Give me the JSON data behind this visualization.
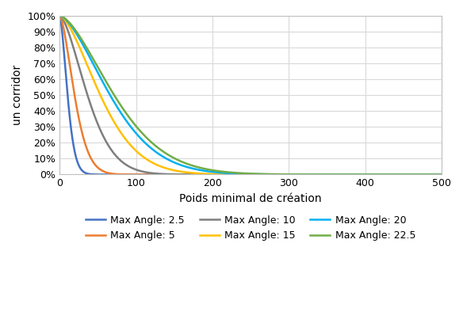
{
  "title": "",
  "xlabel": "Poids minimal de création",
  "ylabel": "un corridor",
  "xlim": [
    0,
    500
  ],
  "ylim": [
    0,
    1.0
  ],
  "yticks": [
    0.0,
    0.1,
    0.2,
    0.3,
    0.4,
    0.5,
    0.6,
    0.7,
    0.8,
    0.9,
    1.0
  ],
  "xticks": [
    0,
    100,
    200,
    300,
    400,
    500
  ],
  "series": [
    {
      "label": "Max Angle: 2.5",
      "color": "#4472C4",
      "k": 0.0165,
      "p": 1.6
    },
    {
      "label": "Max Angle: 5",
      "color": "#ED7D31",
      "k": 0.006,
      "p": 1.6
    },
    {
      "label": "Max Angle: 10",
      "color": "#7F7F7F",
      "k": 0.0022,
      "p": 1.6
    },
    {
      "label": "Max Angle: 15",
      "color": "#FFC000",
      "k": 0.0012,
      "p": 1.6
    },
    {
      "label": "Max Angle: 20",
      "color": "#00B0F0",
      "k": 0.00085,
      "p": 1.6
    },
    {
      "label": "Max Angle: 22.5",
      "color": "#70AD47",
      "k": 0.00075,
      "p": 1.6
    }
  ],
  "grid_color": "#D9D9D9",
  "background_color": "#FFFFFF",
  "legend_fontsize": 9,
  "axis_fontsize": 10,
  "tick_fontsize": 9,
  "linewidth": 1.8,
  "legend_order": [
    "Max Angle: 2.5",
    "Max Angle: 5",
    "Max Angle: 10",
    "Max Angle: 15",
    "Max Angle: 20",
    "Max Angle: 22.5"
  ]
}
